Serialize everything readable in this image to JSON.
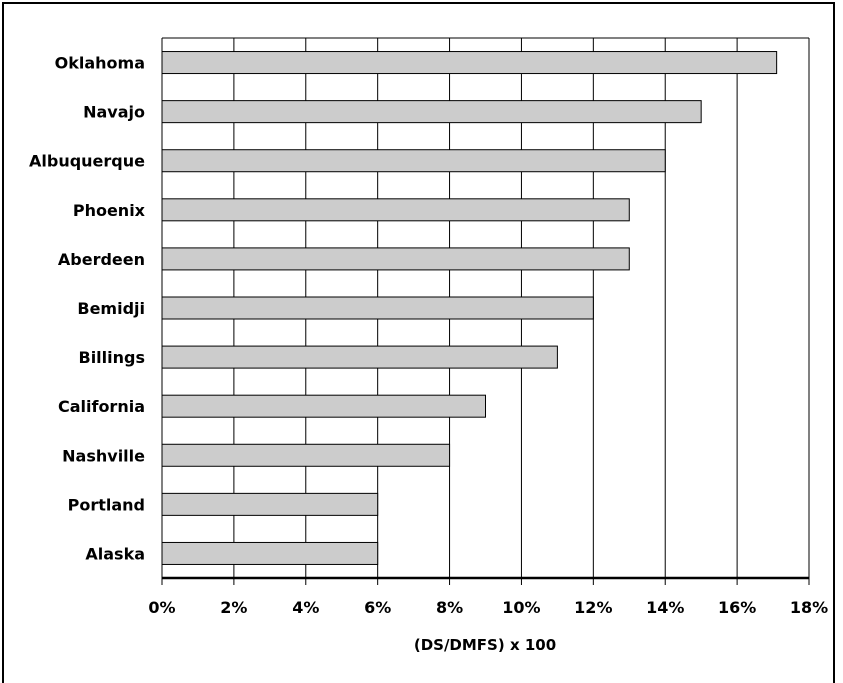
{
  "chart_data": {
    "type": "bar",
    "orientation": "horizontal",
    "title": "",
    "xlabel": "(DS/DMFS) x 100",
    "ylabel": "",
    "xlim": [
      0,
      18
    ],
    "x_tick_labels": [
      "0%",
      "2%",
      "4%",
      "6%",
      "8%",
      "10%",
      "12%",
      "14%",
      "16%",
      "18%"
    ],
    "categories": [
      "Oklahoma",
      "Navajo",
      "Albuquerque",
      "Phoenix",
      "Aberdeen",
      "Bemidji",
      "Billings",
      "California",
      "Nashville",
      "Portland",
      "Alaska"
    ],
    "values": [
      17.1,
      15.0,
      14.0,
      13.0,
      13.0,
      12.0,
      11.0,
      9.0,
      8.0,
      6.0,
      6.0
    ],
    "grid": "vertical",
    "legend": "none",
    "bar_color": "#cccccc"
  }
}
